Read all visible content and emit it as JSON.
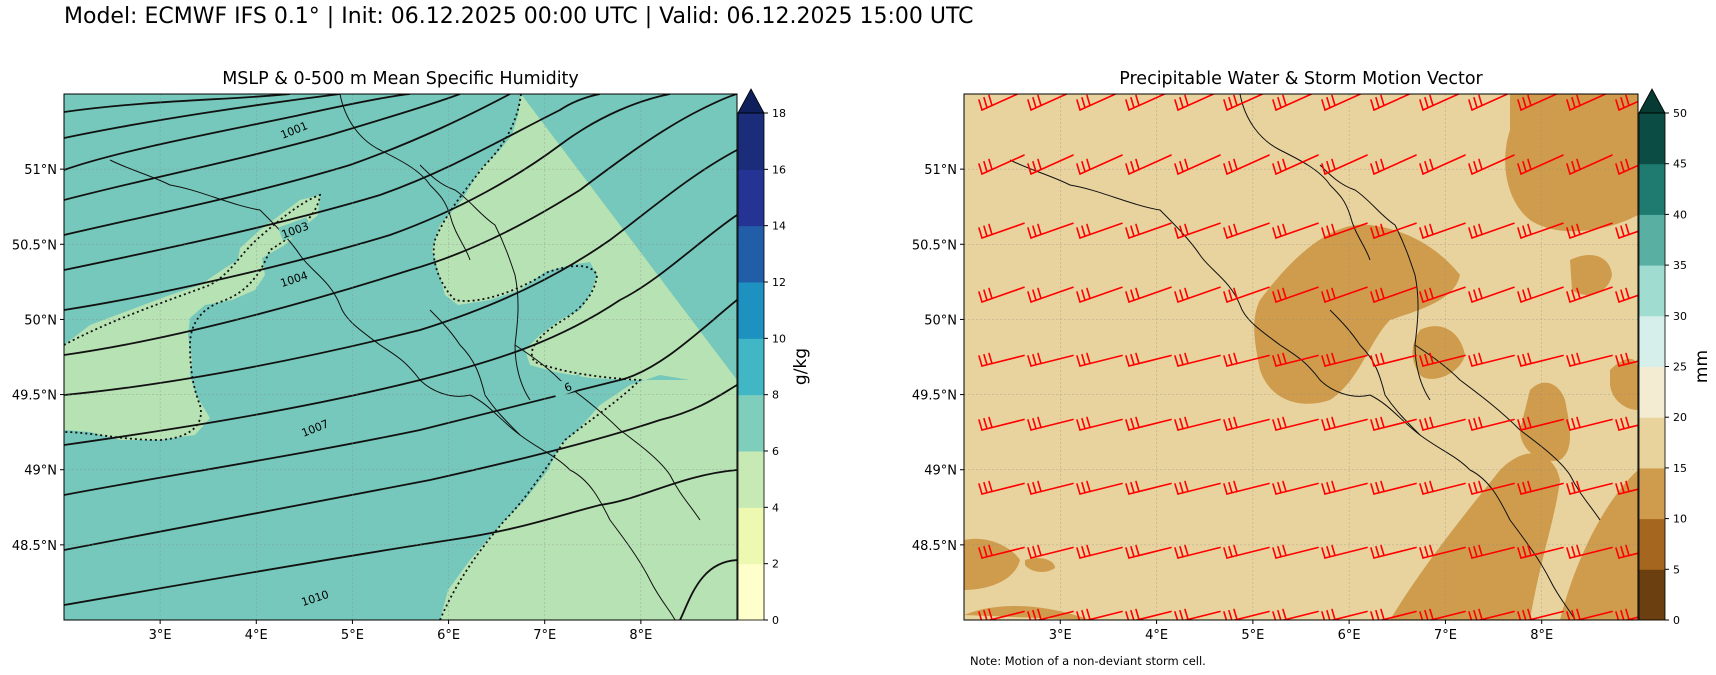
{
  "title": "Model: ECMWF IFS 0.1° | Init: 06.12.2025 00:00 UTC | Valid: 06.12.2025 15:00 UTC",
  "lat_labels": [
    "51°N",
    "50.5°N",
    "50°N",
    "49.5°N",
    "49°N",
    "48.5°N"
  ],
  "lon_labels": [
    "3°E",
    "4°E",
    "5°E",
    "6°E",
    "7°E",
    "8°E"
  ],
  "map_extent": {
    "lon": [
      2.0,
      9.0
    ],
    "lat": [
      48.0,
      51.5
    ]
  },
  "left_panel": {
    "title": "MSLP & 0-500 m Mean Specific Humidity",
    "colorbar": {
      "label": "g/kg",
      "ticks": [
        "0",
        "2",
        "4",
        "6",
        "8",
        "10",
        "12",
        "14",
        "16",
        "18"
      ],
      "colors": [
        "#ffffcc",
        "#edf8b1",
        "#c7e9b4",
        "#7fcdbb",
        "#41b6c4",
        "#1d91c0",
        "#225ea8",
        "#253494",
        "#1a2c7a"
      ],
      "extend_color": "#0f1f5c"
    },
    "isobar_labels": [
      "1001",
      "1003",
      "1004",
      "1007",
      "1010",
      "6"
    ]
  },
  "right_panel": {
    "title": "Precipitable Water & Storm Motion Vector",
    "colorbar": {
      "label": "mm",
      "ticks": [
        "0",
        "5",
        "10",
        "15",
        "20",
        "25",
        "30",
        "35",
        "40",
        "45",
        "50"
      ],
      "colors": [
        "#6b3f0f",
        "#a5661f",
        "#cf9c4d",
        "#e9d39c",
        "#f3ebd2",
        "#d6efea",
        "#a1dcd1",
        "#5aafa3",
        "#1f7a70",
        "#0b4d45"
      ],
      "extend_color": "#073a33"
    },
    "vector_color": "#ff0000",
    "note": "Note: Motion of a non-deviant storm cell."
  },
  "colors": {
    "ocean_bg_left": "#75c8bb",
    "pw_bg": "#e8d39e",
    "pw_high": "#cf9c4d"
  }
}
